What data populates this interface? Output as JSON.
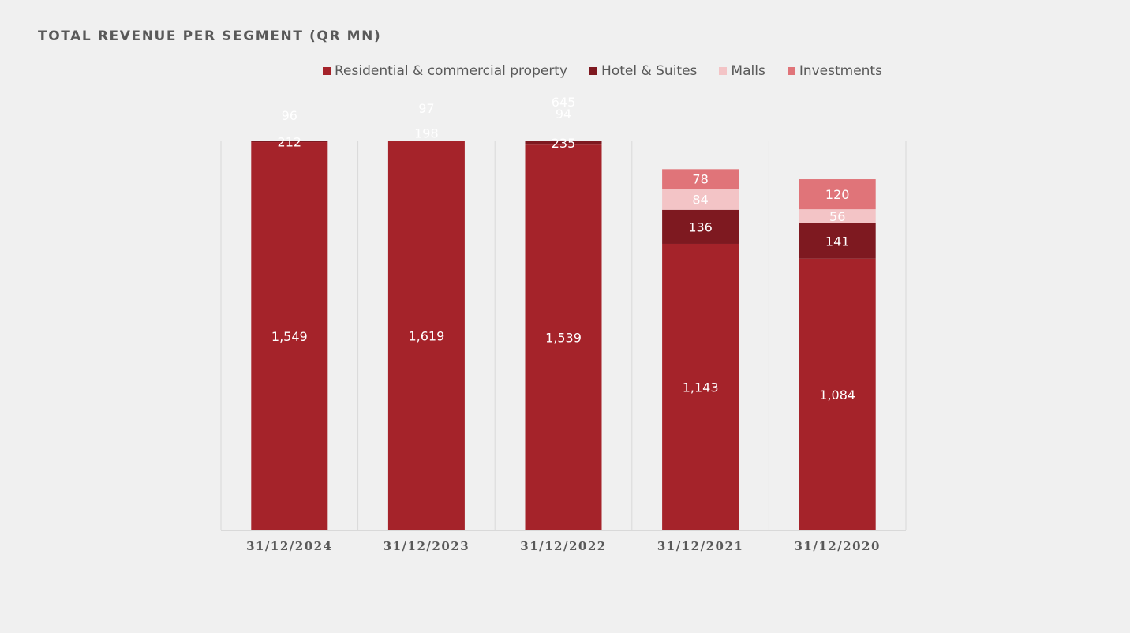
{
  "chart_data": {
    "type": "bar",
    "stacked": true,
    "title": "TOTAL REVENUE PER SEGMENT (QR MN)",
    "categories": [
      "31/12/2024",
      "31/12/2023",
      "31/12/2022",
      "31/12/2021",
      "31/12/2020"
    ],
    "series": [
      {
        "name": "Residential & commercial property",
        "color": "#a5232a",
        "values": [
          1549,
          1619,
          1539,
          1143,
          1084
        ]
      },
      {
        "name": "Hotel & Suites",
        "color": "#7e1920",
        "values": [
          212,
          198,
          235,
          136,
          141
        ]
      },
      {
        "name": "Malls",
        "color": "#f3c4c6",
        "values": [
          96,
          97,
          94,
          84,
          56
        ]
      },
      {
        "name": "Investments",
        "color": "#e07479",
        "values": [
          null,
          null,
          645,
          78,
          120
        ]
      }
    ],
    "legend_position": "top",
    "grid": false
  }
}
